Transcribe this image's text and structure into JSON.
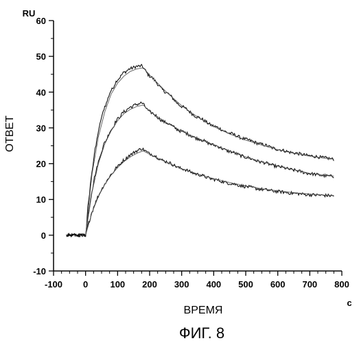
{
  "chart_data": {
    "type": "line",
    "figure_label": "ФИГ. 8",
    "xlabel": "ВРЕМЯ",
    "ylabel": "ОТВЕТ",
    "x_unit": "c",
    "y_unit": "RU",
    "xlim": [
      -100,
      800
    ],
    "ylim": [
      -10,
      60
    ],
    "x_ticks": [
      -100,
      0,
      100,
      200,
      300,
      400,
      500,
      600,
      700,
      800
    ],
    "y_ticks": [
      -10,
      0,
      10,
      20,
      30,
      40,
      50,
      60
    ],
    "grid": false,
    "legend": "none",
    "series": [
      {
        "kind": "measured",
        "x": [
          -60,
          -40,
          -20,
          0,
          10,
          20,
          30,
          40,
          50,
          60,
          80,
          100,
          120,
          140,
          160,
          175,
          200,
          250,
          300,
          350,
          400,
          450,
          500,
          550,
          600,
          650,
          700,
          750,
          775
        ],
        "y": [
          0,
          0,
          0,
          0,
          10,
          18,
          24,
          29,
          33,
          36,
          40.5,
          43.5,
          45.5,
          46.6,
          47.2,
          47.3,
          44.5,
          40,
          36,
          33,
          30.5,
          28.5,
          26.8,
          25.4,
          24,
          23,
          22.2,
          21.6,
          21.2
        ]
      },
      {
        "kind": "measured",
        "x": [
          -60,
          -40,
          -20,
          0,
          10,
          20,
          30,
          40,
          50,
          60,
          80,
          100,
          120,
          140,
          160,
          175,
          200,
          250,
          300,
          350,
          400,
          450,
          500,
          550,
          600,
          650,
          700,
          750,
          775
        ],
        "y": [
          0,
          0,
          0,
          0,
          7,
          12.5,
          17,
          20.5,
          23.5,
          26,
          29.5,
          32.5,
          34.5,
          35.8,
          36.6,
          37,
          34.5,
          31.5,
          29,
          27,
          25.2,
          23.4,
          21.8,
          20.4,
          19.2,
          18.2,
          17.2,
          16.6,
          16.4
        ]
      },
      {
        "kind": "measured",
        "x": [
          -60,
          -40,
          -20,
          0,
          10,
          20,
          30,
          40,
          50,
          60,
          80,
          100,
          120,
          140,
          160,
          175,
          200,
          250,
          300,
          350,
          400,
          450,
          500,
          550,
          600,
          650,
          700,
          750,
          775
        ],
        "y": [
          0,
          0,
          0,
          0,
          3.5,
          6.5,
          9,
          11,
          12.8,
          14.4,
          17,
          19.2,
          21,
          22.5,
          23.6,
          24.2,
          22.8,
          20.6,
          18.6,
          17,
          15.6,
          14.5,
          13.6,
          12.8,
          12.2,
          11.7,
          11.3,
          11.1,
          11
        ]
      },
      {
        "kind": "fit",
        "x": [
          0,
          20,
          40,
          60,
          80,
          100,
          120,
          140,
          160,
          180,
          200,
          250,
          300,
          350,
          400,
          450,
          500,
          550,
          600,
          650,
          700,
          750,
          775
        ],
        "y": [
          0,
          17,
          27.5,
          34.5,
          39.5,
          42.5,
          44.5,
          45.8,
          46.5,
          46.8,
          44.8,
          40.2,
          36.2,
          33,
          30.4,
          28.3,
          26.6,
          25.2,
          23.9,
          22.9,
          22.1,
          21.5,
          21.3
        ]
      },
      {
        "kind": "fit",
        "x": [
          0,
          20,
          40,
          60,
          80,
          100,
          120,
          140,
          160,
          180,
          200,
          250,
          300,
          350,
          400,
          450,
          500,
          550,
          600,
          650,
          700,
          750,
          775
        ],
        "y": [
          0,
          12,
          20,
          25.5,
          29.2,
          32,
          34,
          35.2,
          36,
          36.4,
          34.6,
          31.6,
          29.1,
          27.1,
          25.3,
          23.5,
          21.9,
          20.5,
          19.3,
          18.3,
          17.3,
          16.7,
          16.5
        ]
      },
      {
        "kind": "fit",
        "x": [
          0,
          20,
          40,
          60,
          80,
          100,
          120,
          140,
          160,
          180,
          200,
          250,
          300,
          350,
          400,
          450,
          500,
          550,
          600,
          650,
          700,
          750,
          775
        ],
        "y": [
          0,
          6.3,
          10.8,
          14.2,
          16.8,
          18.9,
          20.6,
          21.9,
          22.9,
          23.6,
          22.6,
          20.5,
          18.6,
          17.1,
          15.8,
          14.7,
          13.8,
          13,
          12.4,
          11.9,
          11.5,
          11.2,
          11.1
        ]
      }
    ]
  }
}
